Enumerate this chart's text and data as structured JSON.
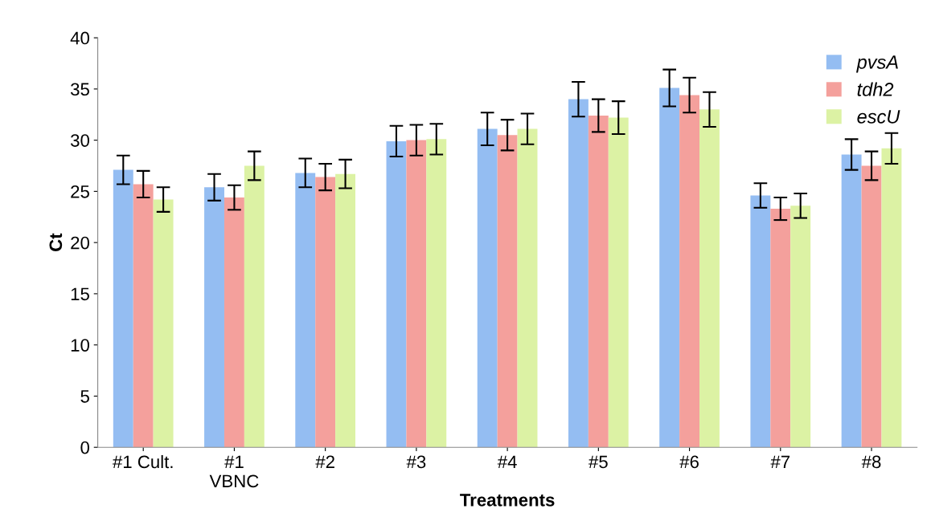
{
  "chart_data": {
    "type": "bar",
    "xlabel": "Treatments",
    "ylabel": "Ct",
    "categories": [
      "#1 Cult.",
      "#1\nVBNC",
      "#2",
      "#3",
      "#4",
      "#5",
      "#6",
      "#7",
      "#8"
    ],
    "series": [
      {
        "name": "pvsA",
        "color": "#94bdf2",
        "values": [
          27.1,
          25.4,
          26.8,
          29.9,
          31.1,
          34.0,
          35.1,
          24.6,
          28.6
        ],
        "errors": [
          1.4,
          1.3,
          1.4,
          1.5,
          1.6,
          1.7,
          1.8,
          1.2,
          1.5
        ]
      },
      {
        "name": "tdh2",
        "color": "#f4a09c",
        "values": [
          25.7,
          24.4,
          26.4,
          30.0,
          30.5,
          32.4,
          34.4,
          23.3,
          27.5
        ],
        "errors": [
          1.3,
          1.2,
          1.3,
          1.5,
          1.5,
          1.6,
          1.7,
          1.1,
          1.4
        ]
      },
      {
        "name": "escU",
        "color": "#dcf2a4",
        "values": [
          24.2,
          27.5,
          26.7,
          30.1,
          31.1,
          32.2,
          33.0,
          23.6,
          29.2
        ],
        "errors": [
          1.2,
          1.4,
          1.4,
          1.5,
          1.5,
          1.6,
          1.7,
          1.2,
          1.5
        ]
      }
    ],
    "ylim": [
      0,
      40
    ],
    "yticks": [
      0,
      5,
      10,
      15,
      20,
      25,
      30,
      35,
      40
    ],
    "grid": false,
    "legend": "top right"
  }
}
